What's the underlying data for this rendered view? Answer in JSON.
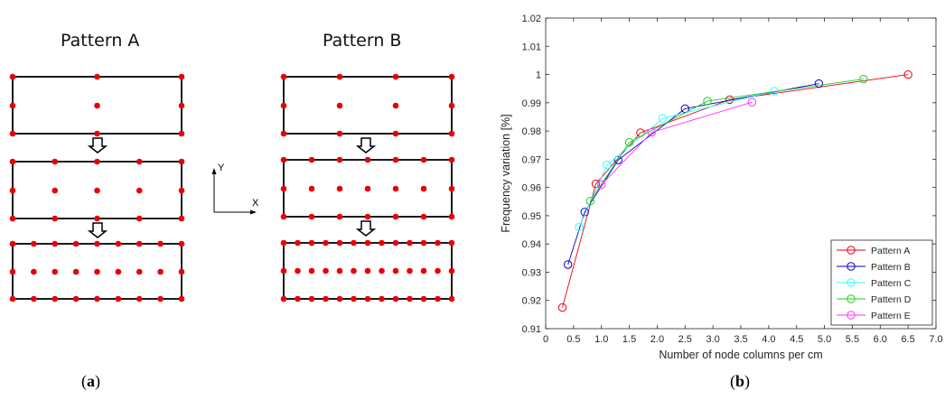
{
  "panel_a": {
    "title_a": "Pattern A",
    "title_b": "Pattern B",
    "axis_y": "Y",
    "axis_x": "X",
    "caption_open": "(",
    "caption_letter": "a",
    "caption_close": ")"
  },
  "panel_b": {
    "caption_open": "(",
    "caption_letter": "b",
    "caption_close": ")"
  },
  "colors": {
    "node": "#e8000b",
    "outline": "#000000",
    "pattern_a": "#e8000b",
    "pattern_b": "#0000cc",
    "pattern_c": "#33ffff",
    "pattern_d": "#22cc22",
    "pattern_e": "#ff33ff"
  },
  "chart_data": {
    "type": "line",
    "xlabel": "Number of node columns per cm",
    "ylabel": "Frequency variation [%]",
    "xlim": [
      0,
      7.0
    ],
    "ylim": [
      0.91,
      1.02
    ],
    "xticks": [
      "0",
      "0.5",
      "1.0",
      "1.5",
      "2.0",
      "2.5",
      "3.0",
      "3.5",
      "4.0",
      "4.5",
      "5.0",
      "5.5",
      "6.0",
      "6.5",
      "7.0"
    ],
    "yticks": [
      "0.91",
      "0.92",
      "0.93",
      "0.94",
      "0.95",
      "0.96",
      "0.97",
      "0.98",
      "0.99",
      "1",
      "1.01",
      "1.02"
    ],
    "grid": false,
    "legend_position": "bottom-right",
    "series": [
      {
        "name": "Pattern A",
        "x": [
          0.3,
          0.9,
          1.7,
          3.3,
          6.5
        ],
        "y": [
          0.9175,
          0.9613,
          0.9794,
          0.9911,
          1.0
        ]
      },
      {
        "name": "Pattern B",
        "x": [
          0.4,
          0.7,
          1.3,
          2.5,
          4.9
        ],
        "y": [
          0.9327,
          0.9513,
          0.9697,
          0.9879,
          0.9968
        ]
      },
      {
        "name": "Pattern C",
        "x": [
          0.6,
          1.1,
          2.1,
          4.1
        ],
        "y": [
          0.946,
          0.968,
          0.9845,
          0.9941
        ]
      },
      {
        "name": "Pattern D",
        "x": [
          0.8,
          1.5,
          2.9,
          5.7
        ],
        "y": [
          0.9552,
          0.976,
          0.9906,
          0.9984
        ]
      },
      {
        "name": "Pattern E",
        "x": [
          1.0,
          1.9,
          3.7
        ],
        "y": [
          0.961,
          0.9795,
          0.9902
        ]
      }
    ]
  }
}
